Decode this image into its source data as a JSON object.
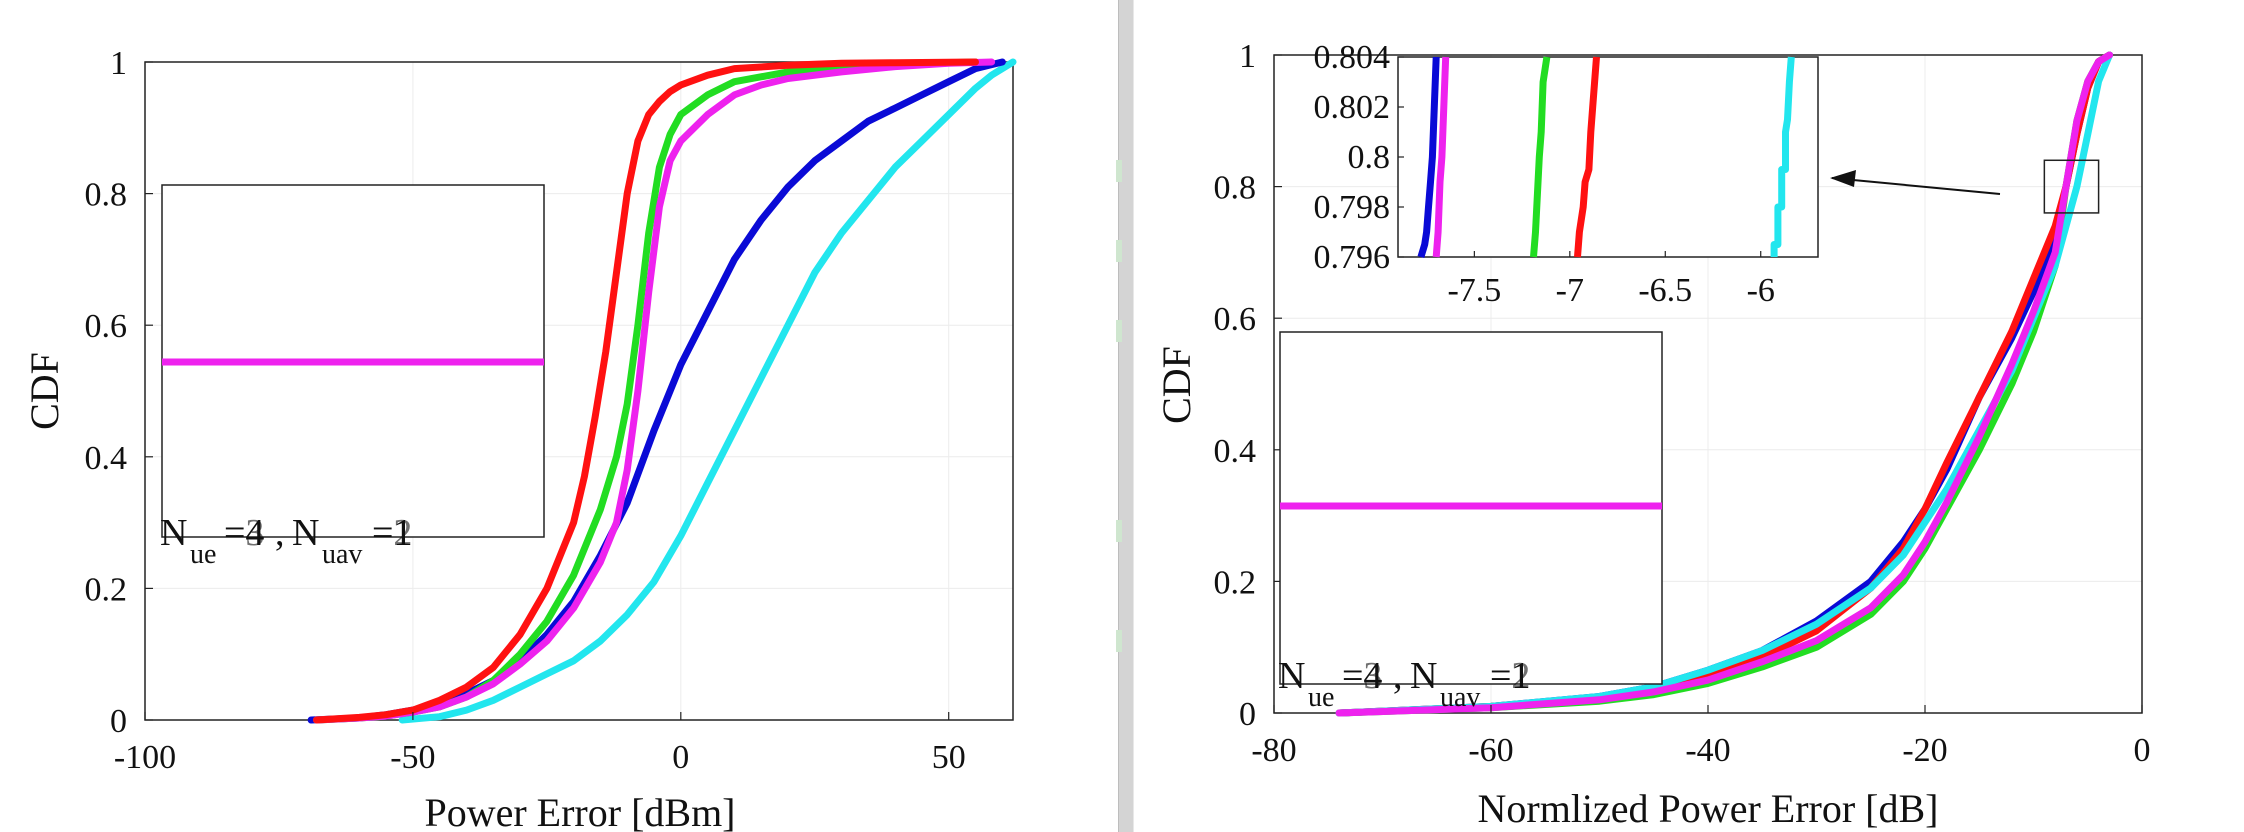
{
  "colors": {
    "cyan": "#22e6ee",
    "blue": "#0a0ad6",
    "green": "#22dd22",
    "magenta": "#ee22ee",
    "red": "#ff1111"
  },
  "chart_data": [
    {
      "type": "line",
      "title": "",
      "xlabel": "Power Error [dBm]",
      "ylabel": "CDF",
      "xlim": [
        -100,
        62
      ],
      "ylim": [
        0,
        1
      ],
      "xticks": [
        "-100",
        "-50",
        "0",
        "50"
      ],
      "xtick_values": [
        -100,
        -50,
        0,
        50
      ],
      "yticks": [
        "0",
        "0.2",
        "0.4",
        "0.6",
        "0.8",
        "1"
      ],
      "ytick_values": [
        0,
        0.2,
        0.4,
        0.6,
        0.8,
        1
      ],
      "grid": true,
      "legend": {
        "position": "left",
        "text_overlay": [
          "=4",
          "=3",
          "=2"
        ],
        "text_overlay_uav": [
          "=4",
          "=2",
          "=1"
        ],
        "display_text": {
          "N1": "N",
          "sub1": "ue",
          "eq1": "=4",
          "comma": ",",
          "N2": "N",
          "sub2": "uav",
          "eq2": "=1"
        },
        "display_text_shadow": {
          "eq1": "=3",
          "eq2": "=2"
        }
      },
      "series": [
        {
          "name": "cyan",
          "color": "cyan",
          "x": [
            -52,
            -45,
            -40,
            -35,
            -30,
            -25,
            -20,
            -15,
            -10,
            -5,
            0,
            5,
            10,
            15,
            20,
            25,
            30,
            35,
            40,
            45,
            50,
            55,
            58,
            62
          ],
          "y": [
            0,
            0.005,
            0.015,
            0.03,
            0.05,
            0.07,
            0.09,
            0.12,
            0.16,
            0.21,
            0.28,
            0.36,
            0.44,
            0.52,
            0.6,
            0.68,
            0.74,
            0.79,
            0.84,
            0.88,
            0.92,
            0.96,
            0.98,
            1
          ]
        },
        {
          "name": "blue",
          "color": "blue",
          "x": [
            -69,
            -60,
            -55,
            -50,
            -45,
            -40,
            -35,
            -30,
            -25,
            -20,
            -15,
            -10,
            -5,
            0,
            5,
            10,
            15,
            20,
            25,
            30,
            35,
            40,
            45,
            50,
            55,
            60
          ],
          "y": [
            0,
            0.003,
            0.008,
            0.015,
            0.025,
            0.04,
            0.06,
            0.09,
            0.13,
            0.18,
            0.25,
            0.33,
            0.44,
            0.54,
            0.62,
            0.7,
            0.76,
            0.81,
            0.85,
            0.88,
            0.91,
            0.93,
            0.95,
            0.97,
            0.99,
            1
          ]
        },
        {
          "name": "green",
          "color": "green",
          "x": [
            -68,
            -60,
            -55,
            -50,
            -45,
            -40,
            -35,
            -30,
            -25,
            -20,
            -15,
            -12,
            -10,
            -8,
            -6,
            -4,
            -2,
            0,
            5,
            10,
            20,
            30,
            40,
            50,
            55
          ],
          "y": [
            0,
            0.003,
            0.006,
            0.012,
            0.02,
            0.035,
            0.06,
            0.1,
            0.15,
            0.22,
            0.32,
            0.4,
            0.48,
            0.6,
            0.74,
            0.84,
            0.89,
            0.92,
            0.95,
            0.97,
            0.985,
            0.993,
            0.997,
            0.999,
            1
          ]
        },
        {
          "name": "magenta",
          "color": "magenta",
          "x": [
            -68,
            -60,
            -55,
            -50,
            -45,
            -40,
            -35,
            -30,
            -25,
            -20,
            -15,
            -12,
            -10,
            -8,
            -6,
            -4,
            -2,
            0,
            5,
            10,
            15,
            20,
            30,
            40,
            50,
            58
          ],
          "y": [
            0,
            0.003,
            0.006,
            0.012,
            0.02,
            0.035,
            0.055,
            0.085,
            0.12,
            0.17,
            0.24,
            0.3,
            0.38,
            0.5,
            0.65,
            0.78,
            0.85,
            0.88,
            0.92,
            0.95,
            0.965,
            0.975,
            0.985,
            0.993,
            0.998,
            1
          ]
        },
        {
          "name": "red",
          "color": "red",
          "x": [
            -68,
            -60,
            -55,
            -50,
            -45,
            -40,
            -35,
            -30,
            -25,
            -20,
            -18,
            -16,
            -14,
            -12,
            -10,
            -8,
            -6,
            -4,
            -2,
            0,
            5,
            10,
            20,
            30,
            40,
            55
          ],
          "y": [
            0,
            0.004,
            0.008,
            0.015,
            0.03,
            0.05,
            0.08,
            0.13,
            0.2,
            0.3,
            0.37,
            0.46,
            0.56,
            0.68,
            0.8,
            0.88,
            0.92,
            0.94,
            0.955,
            0.965,
            0.98,
            0.99,
            0.995,
            0.998,
            0.999,
            1
          ]
        }
      ]
    },
    {
      "type": "line",
      "title": "",
      "xlabel": "Normlized Power Error [dB]",
      "ylabel": "CDF",
      "xlim": [
        -80,
        0
      ],
      "ylim": [
        0,
        1
      ],
      "xticks": [
        "-80",
        "-60",
        "-40",
        "-20",
        "0"
      ],
      "xtick_values": [
        -80,
        -60,
        -40,
        -20,
        0
      ],
      "yticks": [
        "0",
        "0.2",
        "0.4",
        "0.6",
        "0.8",
        "1"
      ],
      "ytick_values": [
        0,
        0.2,
        0.4,
        0.6,
        0.8,
        1
      ],
      "grid": true,
      "legend": {
        "position": "left",
        "display_text": {
          "N1": "N",
          "sub1": "ue",
          "eq1": "=4",
          "comma": ",",
          "N2": "N",
          "sub2": "uav",
          "eq2": "=1"
        },
        "display_text_shadow": {
          "eq1": "=3",
          "eq2": "=2"
        }
      },
      "series": [
        {
          "name": "blue",
          "color": "blue",
          "x": [
            -74,
            -60,
            -50,
            -45,
            -40,
            -35,
            -30,
            -25,
            -22,
            -20,
            -18,
            -15,
            -12,
            -10,
            -8,
            -7,
            -6,
            -5,
            -4,
            -3
          ],
          "y": [
            0,
            0.01,
            0.025,
            0.04,
            0.065,
            0.095,
            0.14,
            0.2,
            0.26,
            0.31,
            0.37,
            0.48,
            0.57,
            0.64,
            0.72,
            0.8,
            0.88,
            0.95,
            0.99,
            1
          ]
        },
        {
          "name": "green",
          "color": "green",
          "x": [
            -74,
            -60,
            -50,
            -45,
            -40,
            -35,
            -30,
            -25,
            -22,
            -20,
            -18,
            -15,
            -12,
            -10,
            -8,
            -7,
            -6,
            -5,
            -4,
            -3
          ],
          "y": [
            0,
            0.008,
            0.018,
            0.028,
            0.045,
            0.07,
            0.1,
            0.15,
            0.2,
            0.25,
            0.31,
            0.4,
            0.5,
            0.58,
            0.68,
            0.8,
            0.9,
            0.96,
            0.99,
            1
          ]
        },
        {
          "name": "red",
          "color": "red",
          "x": [
            -74,
            -60,
            -50,
            -45,
            -40,
            -35,
            -30,
            -25,
            -22,
            -20,
            -18,
            -15,
            -12,
            -10,
            -8,
            -7,
            -6,
            -5,
            -4,
            -3
          ],
          "y": [
            0,
            0.01,
            0.024,
            0.036,
            0.058,
            0.085,
            0.125,
            0.19,
            0.25,
            0.31,
            0.38,
            0.48,
            0.58,
            0.66,
            0.74,
            0.8,
            0.88,
            0.95,
            0.99,
            1
          ]
        },
        {
          "name": "cyan",
          "color": "cyan",
          "x": [
            -74,
            -60,
            -50,
            -45,
            -40,
            -35,
            -30,
            -25,
            -22,
            -20,
            -18,
            -15,
            -12,
            -10,
            -8,
            -6,
            -5,
            -4,
            -3
          ],
          "y": [
            0,
            0.01,
            0.025,
            0.04,
            0.065,
            0.095,
            0.135,
            0.19,
            0.24,
            0.29,
            0.34,
            0.43,
            0.52,
            0.6,
            0.68,
            0.8,
            0.88,
            0.96,
            1
          ]
        },
        {
          "name": "magenta",
          "color": "magenta",
          "x": [
            -74,
            -60,
            -50,
            -45,
            -40,
            -35,
            -30,
            -25,
            -22,
            -20,
            -18,
            -15,
            -12,
            -10,
            -8,
            -7,
            -6,
            -5,
            -4,
            -3
          ],
          "y": [
            0,
            0.008,
            0.02,
            0.032,
            0.05,
            0.078,
            0.11,
            0.16,
            0.21,
            0.26,
            0.32,
            0.42,
            0.53,
            0.61,
            0.7,
            0.8,
            0.9,
            0.96,
            0.99,
            1
          ]
        }
      ],
      "inset": {
        "xlim": [
          -7.9,
          -5.7
        ],
        "ylim": [
          0.796,
          0.804
        ],
        "xticks": [
          "-7.5",
          "-7",
          "-6.5",
          "-6"
        ],
        "xtick_values": [
          -7.5,
          -7,
          -6.5,
          -6
        ],
        "yticks": [
          "0.796",
          "0.798",
          "0.8",
          "0.802",
          "0.804"
        ],
        "ytick_values": [
          0.796,
          0.798,
          0.8,
          0.802,
          0.804
        ],
        "series": [
          {
            "name": "blue",
            "color": "blue",
            "x": [
              -7.78,
              -7.76,
              -7.75,
              -7.74,
              -7.73,
              -7.72,
              -7.71,
              -7.7
            ],
            "y": [
              0.796,
              0.7965,
              0.797,
              0.798,
              0.799,
              0.8,
              0.802,
              0.804
            ]
          },
          {
            "name": "magenta",
            "color": "magenta",
            "x": [
              -7.7,
              -7.69,
              -7.68,
              -7.67,
              -7.66,
              -7.65
            ],
            "y": [
              0.796,
              0.797,
              0.799,
              0.8,
              0.802,
              0.804
            ]
          },
          {
            "name": "green",
            "color": "green",
            "x": [
              -7.19,
              -7.18,
              -7.17,
              -7.16,
              -7.15,
              -7.14,
              -7.12
            ],
            "y": [
              0.796,
              0.797,
              0.7985,
              0.8,
              0.801,
              0.803,
              0.804
            ]
          },
          {
            "name": "red",
            "color": "red",
            "x": [
              -6.96,
              -6.95,
              -6.93,
              -6.92,
              -6.9,
              -6.89,
              -6.88,
              -6.87,
              -6.86
            ],
            "y": [
              0.796,
              0.797,
              0.798,
              0.799,
              0.7995,
              0.801,
              0.802,
              0.803,
              0.804
            ]
          },
          {
            "name": "cyan",
            "color": "cyan",
            "x": [
              -5.93,
              -5.93,
              -5.91,
              -5.91,
              -5.89,
              -5.89,
              -5.87,
              -5.87,
              -5.86,
              -5.85,
              -5.84
            ],
            "y": [
              0.796,
              0.7965,
              0.7965,
              0.798,
              0.798,
              0.7995,
              0.7995,
              0.801,
              0.8015,
              0.803,
              0.804
            ]
          }
        ]
      },
      "zoom_box": {
        "x": [
          -9,
          -4
        ],
        "y": [
          0.76,
          0.84
        ]
      }
    }
  ]
}
